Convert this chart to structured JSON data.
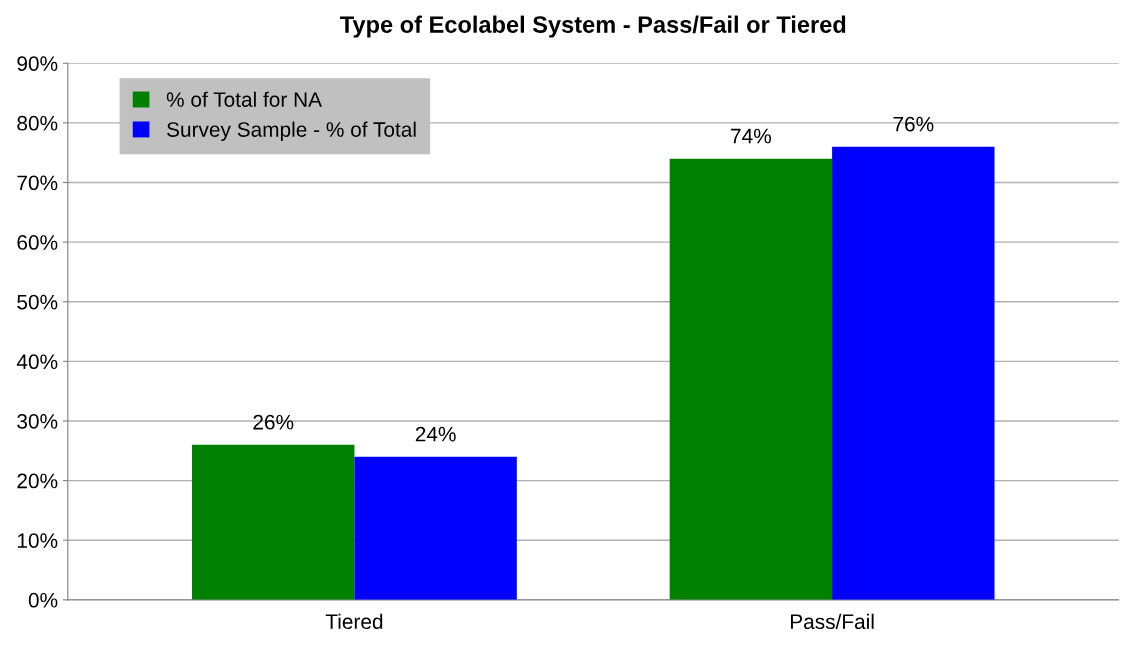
{
  "chart_data": {
    "type": "bar",
    "title": "Type of Ecolabel System - Pass/Fail or Tiered",
    "categories": [
      "Tiered",
      "Pass/Fail"
    ],
    "series": [
      {
        "name": "% of Total for NA",
        "color": "#008000",
        "values": [
          26,
          74
        ],
        "value_labels": [
          "26%",
          "74%"
        ]
      },
      {
        "name": "Survey Sample - % of Total",
        "color": "#0000ff",
        "values": [
          24,
          76
        ],
        "value_labels": [
          "24%",
          "76%"
        ]
      }
    ],
    "ylim": [
      0,
      90
    ],
    "yticks": [
      {
        "value": 0,
        "label": "0%"
      },
      {
        "value": 10,
        "label": "10%"
      },
      {
        "value": 20,
        "label": "20%"
      },
      {
        "value": 30,
        "label": "30%"
      },
      {
        "value": 40,
        "label": "40%"
      },
      {
        "value": 50,
        "label": "50%"
      },
      {
        "value": 60,
        "label": "60%"
      },
      {
        "value": 70,
        "label": "70%"
      },
      {
        "value": 80,
        "label": "80%"
      },
      {
        "value": 90,
        "label": "90%"
      }
    ],
    "grid": "y",
    "legend": "top left"
  }
}
